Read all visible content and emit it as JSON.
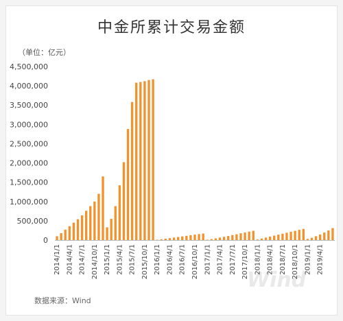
{
  "chart_data": {
    "type": "bar",
    "title": "中金所累计交易金额",
    "unit_label": "（单位：亿元）",
    "source": "数据来源：Wind",
    "watermark": "Wind",
    "color": "#f0932f",
    "ylim": [
      0,
      4500000
    ],
    "y_ticks": [
      "0",
      "500,000",
      "1,000,000",
      "1,500,000",
      "2,000,000",
      "2,500,000",
      "3,000,000",
      "3,500,000",
      "4,000,000",
      "4,500,000"
    ],
    "x_tick_labels": [
      "2014/1/1",
      "2014/4/1",
      "2014/7/1",
      "2014/10/1",
      "2015/1/1",
      "2015/4/1",
      "2015/7/1",
      "2015/10/1",
      "2016/1/1",
      "2016/4/1",
      "2016/7/1",
      "2016/10/1",
      "2017/1/1",
      "2017/4/1",
      "2017/7/1",
      "2017/10/1",
      "2018/1/1",
      "2018/4/1",
      "2018/7/1",
      "2018/10/1",
      "2019/1/1",
      "2019/4/1"
    ],
    "values": [
      100000,
      180000,
      270000,
      360000,
      450000,
      540000,
      640000,
      760000,
      880000,
      1000000,
      1200000,
      1650000,
      330000,
      550000,
      880000,
      1420000,
      2020000,
      2880000,
      3580000,
      4080000,
      4100000,
      4120000,
      4150000,
      4170000,
      8000,
      20000,
      35000,
      50000,
      65000,
      80000,
      95000,
      110000,
      125000,
      140000,
      155000,
      170000,
      10000,
      25000,
      45000,
      65000,
      85000,
      105000,
      130000,
      150000,
      175000,
      195000,
      220000,
      240000,
      15000,
      40000,
      65000,
      90000,
      115000,
      140000,
      165000,
      190000,
      215000,
      240000,
      265000,
      290000,
      30000,
      60000,
      100000,
      145000,
      195000,
      250000,
      310000
    ]
  }
}
